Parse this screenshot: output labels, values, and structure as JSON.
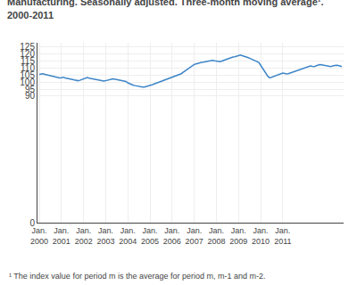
{
  "chart_data": {
    "type": "line",
    "title": "Manufacturing. Seasonally adjusted. Three-month moving average¹.\n2000-2011",
    "annotations": [
      "¹ The index value for period m is the average for period m, m-1 and m-2."
    ],
    "color": "#3d85c8",
    "grid": true,
    "ylim": [
      0,
      128
    ],
    "yticks": [
      0,
      90,
      95,
      100,
      105,
      110,
      115,
      120,
      125
    ],
    "categories": [
      "Jan.\n2000",
      null,
      null,
      null,
      null,
      null,
      null,
      null,
      null,
      null,
      null,
      null,
      "Jan.\n2001",
      null,
      null,
      null,
      null,
      null,
      null,
      null,
      null,
      null,
      null,
      null,
      "Jan.\n2002",
      null,
      null,
      null,
      null,
      null,
      null,
      null,
      null,
      null,
      null,
      null,
      "Jan.\n2003",
      null,
      null,
      null,
      null,
      null,
      null,
      null,
      null,
      null,
      null,
      null,
      "Jan.\n2004",
      null,
      null,
      null,
      null,
      null,
      null,
      null,
      null,
      null,
      null,
      null,
      "Jan.\n2005",
      null,
      null,
      null,
      null,
      null,
      null,
      null,
      null,
      null,
      null,
      null,
      "Jan.\n2006",
      null,
      null,
      null,
      null,
      null,
      null,
      null,
      null,
      null,
      null,
      null,
      "Jan.\n2007",
      null,
      null,
      null,
      null,
      null,
      null,
      null,
      null,
      null,
      null,
      null,
      "Jan.\n2008",
      null,
      null,
      null,
      null,
      null,
      null,
      null,
      null,
      null,
      null,
      null,
      "Jan.\n2009",
      null,
      null,
      null,
      null,
      null,
      null,
      null,
      null,
      null,
      null,
      null,
      "Jan.\n2010",
      null,
      null,
      null,
      null,
      null,
      null,
      null,
      null,
      null,
      null,
      null,
      "Jan.\n2011",
      null,
      null,
      null,
      null,
      null,
      null,
      null,
      null,
      null,
      null,
      null,
      null,
      null,
      null,
      null,
      null,
      null,
      null,
      null,
      null,
      null,
      null,
      null,
      null,
      null,
      null,
      null,
      null,
      null,
      null,
      null,
      null
    ],
    "values": [
      105.5,
      105.8,
      106.0,
      105.5,
      105.2,
      105.0,
      104.8,
      104.5,
      104.2,
      104.0,
      103.5,
      103.0,
      103.2,
      103.5,
      103.0,
      102.8,
      102.5,
      102.0,
      101.8,
      101.5,
      101.2,
      101.0,
      101.3,
      101.8,
      102.5,
      103.0,
      103.2,
      102.8,
      102.5,
      102.2,
      102.0,
      101.8,
      101.5,
      101.2,
      101.0,
      100.8,
      101.0,
      101.5,
      101.8,
      102.0,
      102.3,
      102.0,
      101.8,
      101.5,
      101.2,
      101.0,
      100.8,
      100.5,
      99.5,
      98.8,
      98.2,
      97.8,
      97.5,
      97.2,
      97.0,
      96.8,
      96.5,
      96.5,
      96.8,
      97.0,
      97.5,
      98.0,
      98.5,
      99.0,
      99.5,
      100.0,
      100.5,
      101.0,
      101.5,
      102.0,
      102.5,
      103.0,
      103.5,
      104.0,
      104.5,
      105.0,
      105.5,
      106.0,
      107.0,
      108.0,
      109.0,
      110.0,
      111.0,
      112.0,
      112.5,
      113.0,
      113.5,
      113.8,
      114.0,
      114.2,
      114.5,
      114.8,
      115.0,
      115.2,
      115.5,
      115.2,
      115.0,
      114.8,
      114.5,
      115.0,
      115.5,
      116.0,
      116.5,
      117.0,
      117.5,
      117.8,
      118.0,
      118.5,
      119.0,
      119.2,
      118.8,
      118.5,
      118.0,
      117.5,
      117.0,
      116.5,
      116.0,
      115.5,
      115.0,
      114.0,
      112.0,
      110.0,
      108.0,
      106.0,
      104.0,
      103.0,
      103.5,
      104.0,
      104.5,
      105.0,
      105.5,
      106.0,
      106.5,
      106.2,
      105.8,
      106.0,
      106.5,
      107.0,
      107.5,
      108.0,
      108.5,
      109.0,
      109.5,
      110.0,
      110.5,
      111.0,
      111.5,
      111.5,
      111.2,
      111.0,
      111.5,
      112.0,
      112.5,
      112.3,
      112.0,
      111.8,
      111.5,
      111.2,
      111.0,
      111.5,
      112.0,
      112.0,
      111.8,
      111.5,
      111.0
    ]
  }
}
